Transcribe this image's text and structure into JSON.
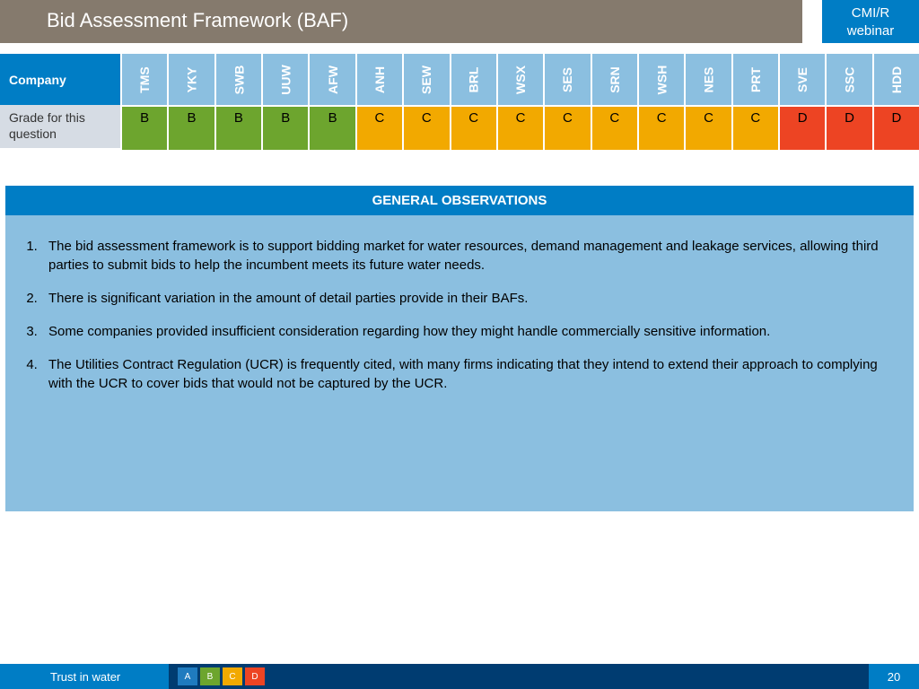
{
  "title": "Bid Assessment Framework (BAF)",
  "badge": {
    "line1": "CMI/R",
    "line2": "webinar"
  },
  "table": {
    "row_header": "Company",
    "row_label": "Grade for this question",
    "companies": [
      "TMS",
      "YKY",
      "SWB",
      "UUW",
      "AFW",
      "ANH",
      "SEW",
      "BRL",
      "WSX",
      "SES",
      "SRN",
      "WSH",
      "NES",
      "PRT",
      "SVE",
      "SSC",
      "HDD"
    ],
    "grades": [
      "B",
      "B",
      "B",
      "B",
      "B",
      "C",
      "C",
      "C",
      "C",
      "C",
      "C",
      "C",
      "C",
      "C",
      "D",
      "D",
      "D"
    ],
    "grade_colors": {
      "A": "#1f7bbf",
      "B": "#6da52e",
      "C": "#f2a900",
      "D": "#ed4423"
    },
    "header_bg": "#8bbfe0",
    "left_header_bg": "#007dc5",
    "left_row_bg": "#d6dce4"
  },
  "observations": {
    "header": "GENERAL OBSERVATIONS",
    "header_bg": "#007dc5",
    "body_bg": "#8bbfe0",
    "items": [
      "The bid assessment framework is to support bidding market for water resources, demand management and leakage services, allowing third parties to submit bids to help the incumbent meets its future water needs.",
      "There is significant variation in the amount of detail parties provide in their BAFs.",
      "Some companies provided insufficient consideration regarding how they might handle commercially sensitive information.",
      "The Utilities Contract Regulation (UCR) is frequently cited, with many firms indicating that they intend to extend their approach to complying with the UCR to cover bids that would not be captured by the UCR."
    ]
  },
  "footer": {
    "tagline": "Trust in water",
    "legend": [
      {
        "label": "A",
        "color": "#1f7bbf"
      },
      {
        "label": "B",
        "color": "#6da52e"
      },
      {
        "label": "C",
        "color": "#f2a900"
      },
      {
        "label": "D",
        "color": "#ed4423"
      }
    ],
    "page": "20",
    "left_bg": "#007dc5",
    "mid_bg": "#003c71",
    "right_bg": "#007dc5"
  }
}
